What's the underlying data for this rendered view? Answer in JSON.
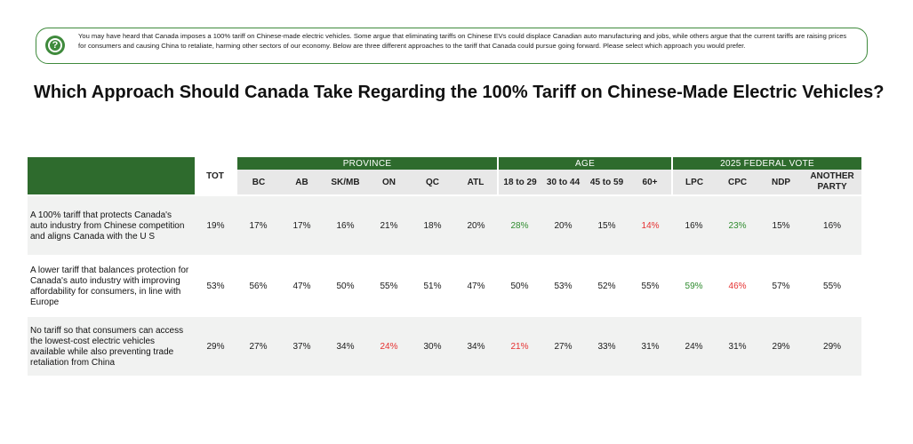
{
  "intro_text": "You may have heard that Canada imposes a 100% tariff on Chinese-made electric vehicles. Some argue that eliminating tariffs on Chinese EVs could displace Canadian auto manufacturing and jobs, while others argue that the current tariffs are raising prices for consumers and causing China to retaliate, harming other sectors of our economy. Below are three different approaches to the tariff that Canada could pursue going forward. Please select which approach you would prefer.",
  "intro_icon": "question-mark-icon",
  "title": "Which Approach Should Canada Take Regarding the 100% Tariff on Chinese-Made Electric Vehicles?",
  "colors": {
    "header_green": "#2e6b2d",
    "positive": "#2e8b2e",
    "negative": "#e53030"
  },
  "chart_data": {
    "type": "table",
    "title": "Which Approach Should Canada Take Regarding the 100% Tariff on Chinese-Made Electric Vehicles?",
    "groups": [
      {
        "label": "",
        "columns": [
          "TOT"
        ]
      },
      {
        "label": "PROVINCE",
        "columns": [
          "BC",
          "AB",
          "SK/MB",
          "ON",
          "QC",
          "ATL"
        ]
      },
      {
        "label": "AGE",
        "columns": [
          "18 to 29",
          "30 to 44",
          "45 to 59",
          "60+"
        ]
      },
      {
        "label": "2025 FEDERAL VOTE",
        "columns": [
          "LPC",
          "CPC",
          "NDP",
          "ANOTHER PARTY"
        ]
      }
    ],
    "rows": [
      {
        "label": "A 100% tariff that protects Canada's auto industry from Chinese competition and aligns Canada with the U S",
        "values": [
          "19%",
          "17%",
          "17%",
          "16%",
          "21%",
          "18%",
          "20%",
          "28%",
          "20%",
          "15%",
          "14%",
          "16%",
          "23%",
          "15%",
          "16%"
        ],
        "flags": [
          "",
          "",
          "",
          "",
          "",
          "",
          "",
          "pos",
          "",
          "",
          "neg",
          "",
          "pos",
          "",
          ""
        ]
      },
      {
        "label": "A lower tariff that balances protection for Canada's auto industry with improving affordability for consumers, in line with Europe",
        "values": [
          "53%",
          "56%",
          "47%",
          "50%",
          "55%",
          "51%",
          "47%",
          "50%",
          "53%",
          "52%",
          "55%",
          "59%",
          "46%",
          "57%",
          "55%"
        ],
        "flags": [
          "",
          "",
          "",
          "",
          "",
          "",
          "",
          "",
          "",
          "",
          "",
          "pos",
          "neg",
          "",
          ""
        ]
      },
      {
        "label": "No tariff so that consumers can access the lowest-cost electric vehicles available while also preventing trade retaliation from China",
        "values": [
          "29%",
          "27%",
          "37%",
          "34%",
          "24%",
          "30%",
          "34%",
          "21%",
          "27%",
          "33%",
          "31%",
          "24%",
          "31%",
          "29%",
          "29%"
        ],
        "flags": [
          "",
          "",
          "",
          "",
          "neg",
          "",
          "",
          "neg",
          "",
          "",
          "",
          "",
          "",
          "",
          ""
        ]
      }
    ]
  }
}
